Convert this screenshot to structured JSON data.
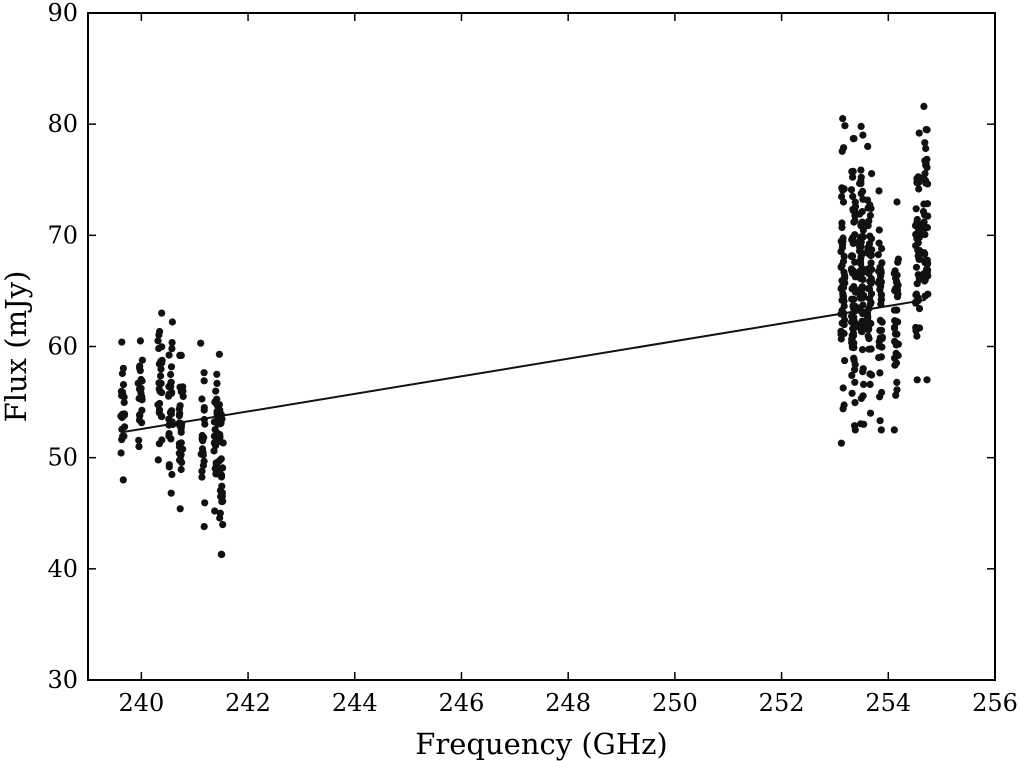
{
  "chart_data": {
    "type": "scatter",
    "xlabel": "Frequency (GHz)",
    "ylabel": "Flux (mJy)",
    "xlim": [
      239,
      256
    ],
    "ylim": [
      30,
      90
    ],
    "x_ticks": [
      240,
      242,
      244,
      246,
      248,
      250,
      252,
      254,
      256
    ],
    "y_ticks": [
      30,
      40,
      50,
      60,
      70,
      80,
      90
    ],
    "x_tick_labels": [
      "240",
      "242",
      "244",
      "246",
      "248",
      "250",
      "252",
      "254",
      "256"
    ],
    "y_tick_labels": [
      "30",
      "40",
      "50",
      "60",
      "70",
      "80",
      "90"
    ],
    "grid": false,
    "marker_color": "#111111",
    "fit_line": {
      "x": [
        239.65,
        254.7
      ],
      "y": [
        52.3,
        64.2
      ]
    },
    "clusters": [
      {
        "x": 239.65,
        "y_min": 48.0,
        "y_max": 60.4,
        "n": 22
      },
      {
        "x": 239.98,
        "y_min": 51.0,
        "y_max": 60.5,
        "n": 24
      },
      {
        "x": 240.35,
        "y_min": 49.8,
        "y_max": 63.0,
        "n": 26
      },
      {
        "x": 240.55,
        "y_min": 46.8,
        "y_max": 62.2,
        "n": 30
      },
      {
        "x": 240.75,
        "y_min": 45.4,
        "y_max": 59.2,
        "n": 30
      },
      {
        "x": 241.15,
        "y_min": 43.8,
        "y_max": 60.3,
        "n": 24
      },
      {
        "x": 241.4,
        "y_min": 45.2,
        "y_max": 57.5,
        "n": 30
      },
      {
        "x": 241.5,
        "y_min": 41.3,
        "y_max": 59.3,
        "n": 30
      },
      {
        "x": 253.15,
        "y_min": 51.3,
        "y_max": 80.5,
        "n": 55
      },
      {
        "x": 253.35,
        "y_min": 52.5,
        "y_max": 78.7,
        "n": 70
      },
      {
        "x": 253.5,
        "y_min": 53.0,
        "y_max": 79.8,
        "n": 70
      },
      {
        "x": 253.65,
        "y_min": 54.0,
        "y_max": 78.0,
        "n": 55
      },
      {
        "x": 253.85,
        "y_min": 52.5,
        "y_max": 74.0,
        "n": 40
      },
      {
        "x": 254.15,
        "y_min": 52.5,
        "y_max": 73.0,
        "n": 40
      },
      {
        "x": 254.55,
        "y_min": 57.0,
        "y_max": 79.2,
        "n": 45
      },
      {
        "x": 254.7,
        "y_min": 57.0,
        "y_max": 81.6,
        "n": 45
      }
    ]
  }
}
